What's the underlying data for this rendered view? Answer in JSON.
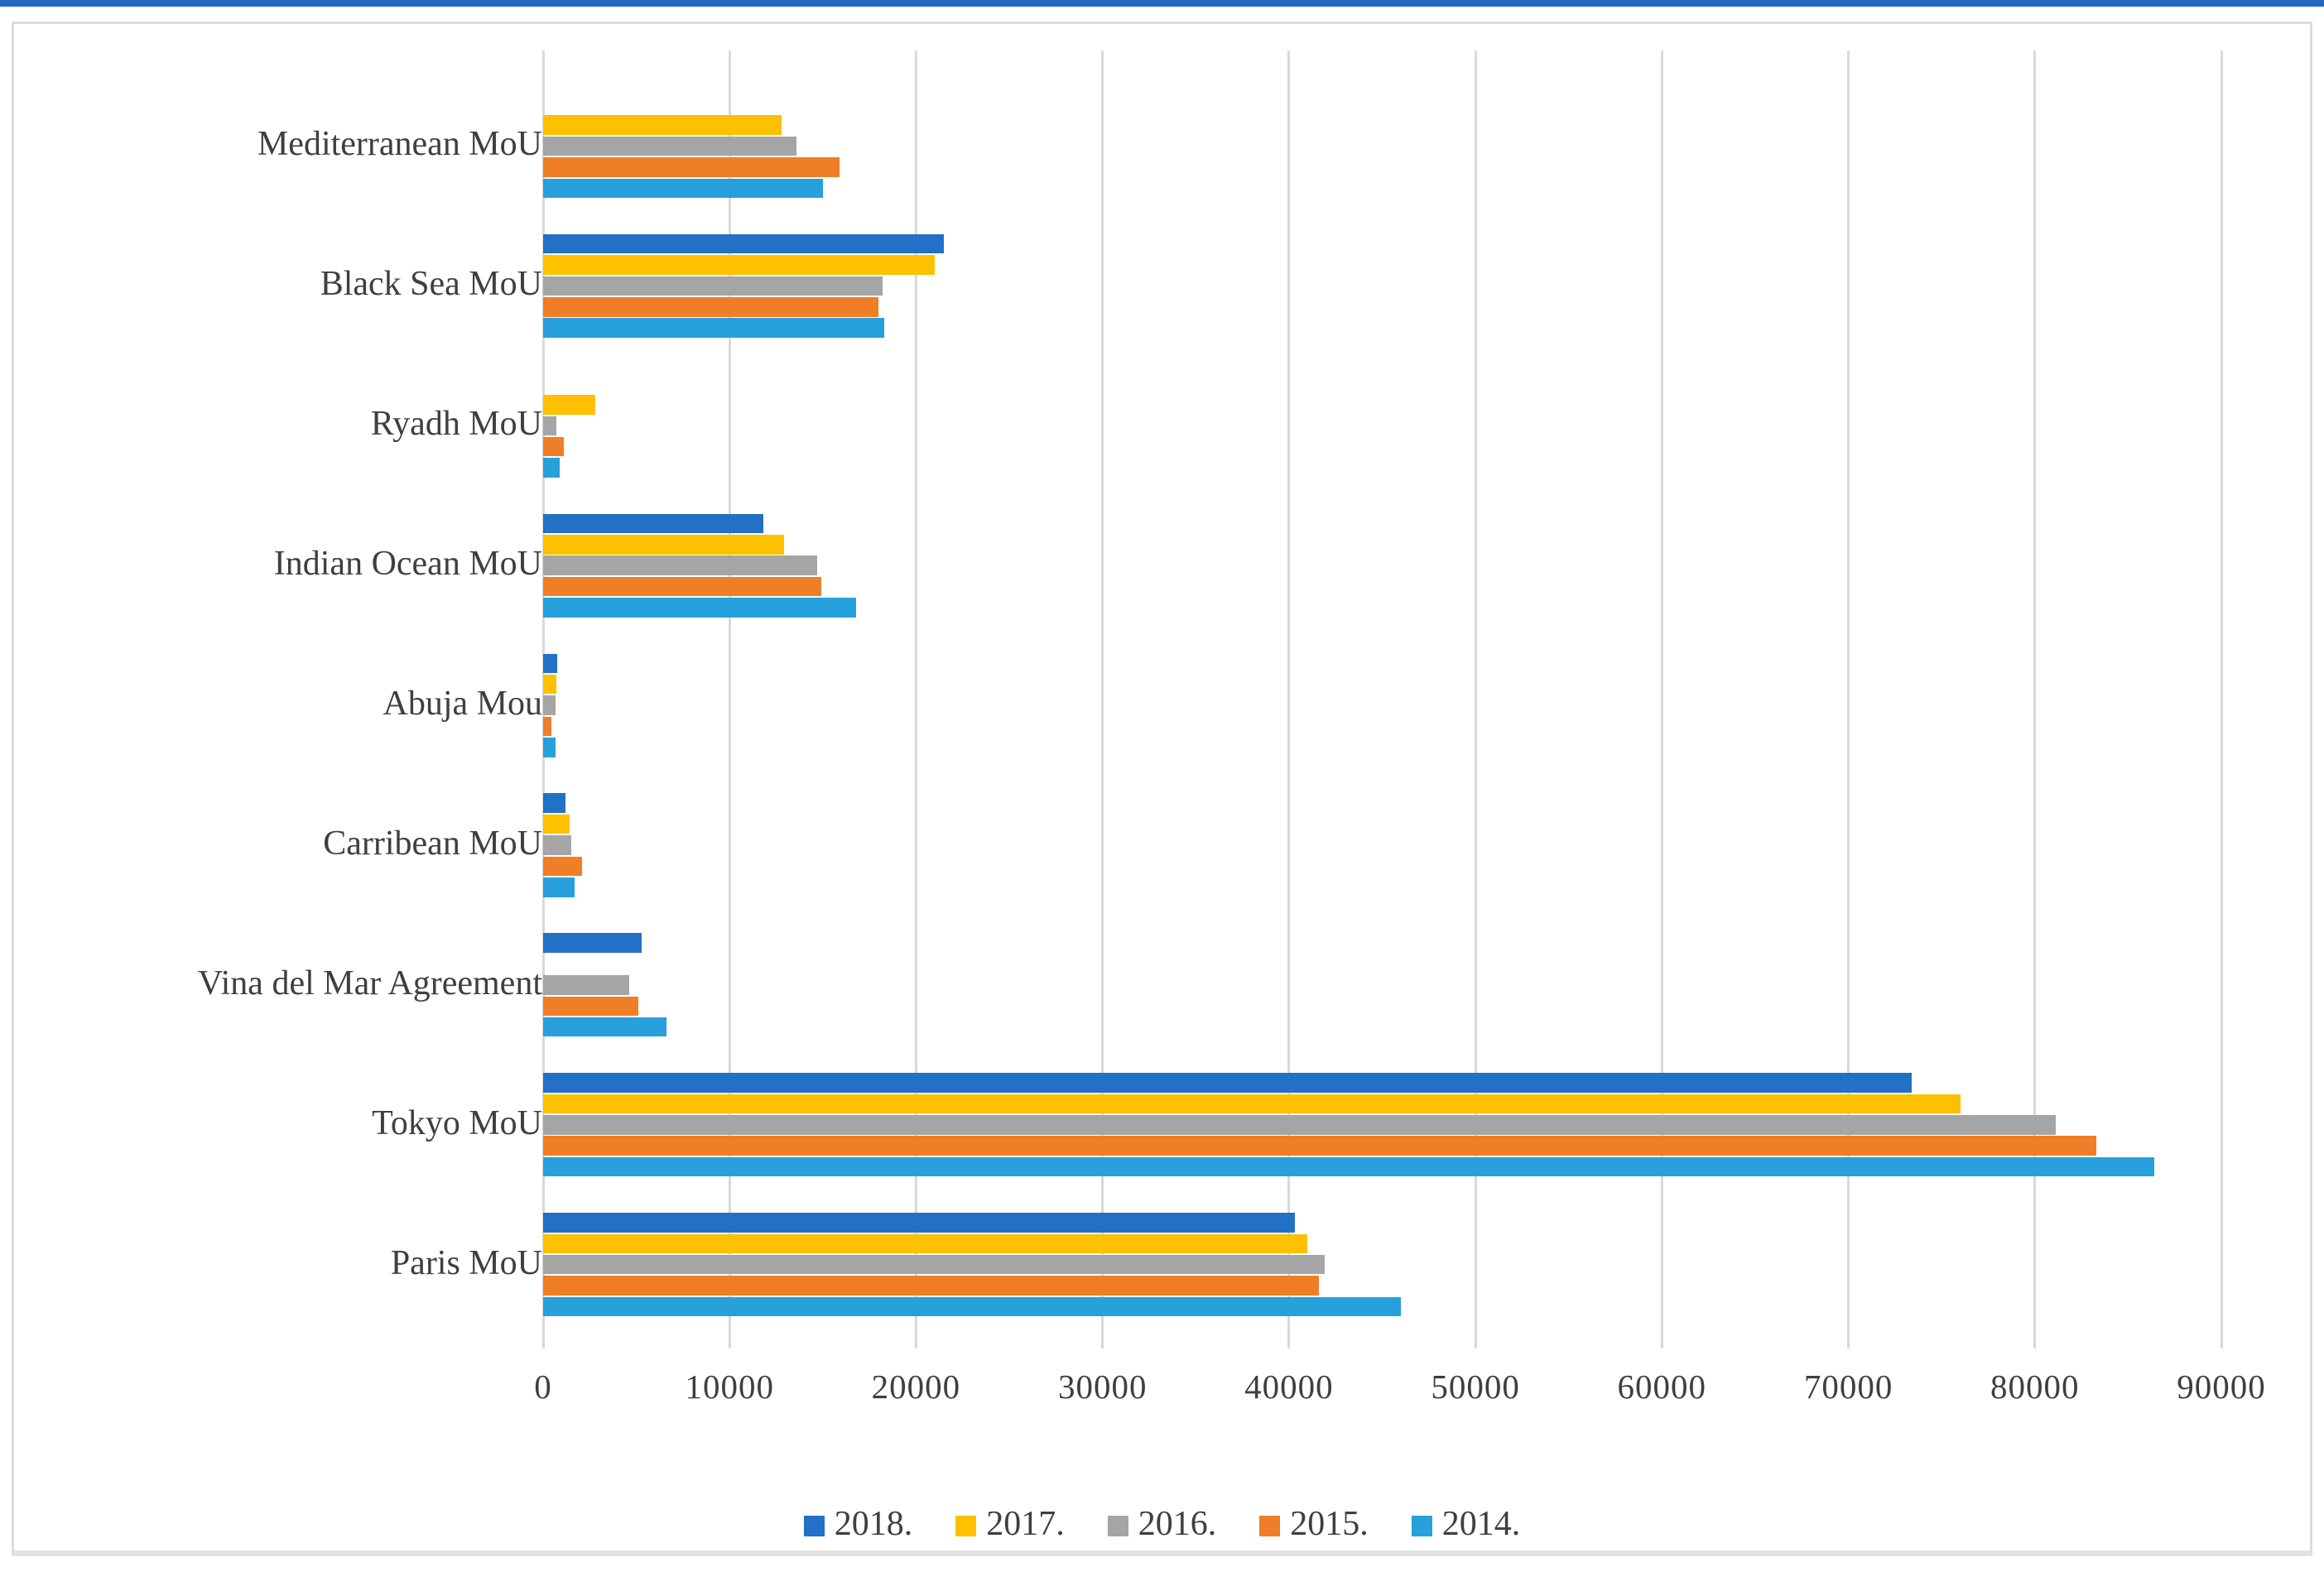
{
  "page": {
    "top_accent_color": "#2569BE",
    "frame_border_color": "#DBDBDB",
    "background_color": "#FFFFFF",
    "text_color": "#3F3F3F",
    "gridline_color": "#D9D9D9"
  },
  "chart_data": {
    "type": "bar",
    "orientation": "horizontal",
    "title": "",
    "xlabel": "",
    "ylabel": "",
    "grid": true,
    "legend_position": "bottom",
    "xlim": [
      0,
      90000
    ],
    "xticks": [
      0,
      10000,
      20000,
      30000,
      40000,
      50000,
      60000,
      70000,
      80000,
      90000
    ],
    "xtick_labels": [
      "0",
      "10000",
      "20000",
      "30000",
      "40000",
      "50000",
      "60000",
      "70000",
      "80000",
      "90000"
    ],
    "categories": [
      "Mediterranean MoU",
      "Black Sea MoU",
      "Ryadh MoU",
      "Indian Ocean MoU",
      "Abuja Mou",
      "Carribean MoU",
      "Vina del Mar Agreement",
      "Tokyo MoU",
      "Paris MoU"
    ],
    "series": [
      {
        "name": "2018.",
        "color": "#2271C7",
        "values": [
          0,
          21500,
          0,
          11800,
          750,
          1200,
          5300,
          73400,
          40300
        ]
      },
      {
        "name": "2017.",
        "color": "#FFC000",
        "values": [
          12800,
          21000,
          2800,
          12900,
          700,
          1400,
          0,
          76000,
          41000
        ]
      },
      {
        "name": "2016.",
        "color": "#A5A5A5",
        "values": [
          13600,
          18200,
          700,
          14700,
          650,
          1500,
          4600,
          81100,
          41900
        ]
      },
      {
        "name": "2015.",
        "color": "#F07E27",
        "values": [
          15900,
          18000,
          1100,
          14900,
          450,
          2100,
          5100,
          83300,
          41600
        ]
      },
      {
        "name": "2014.",
        "color": "#27A0DB",
        "values": [
          15000,
          18300,
          900,
          16800,
          650,
          1700,
          6600,
          86400,
          46000
        ]
      }
    ],
    "missing_bars_note": "zero value means no bar drawn for that year/category"
  }
}
